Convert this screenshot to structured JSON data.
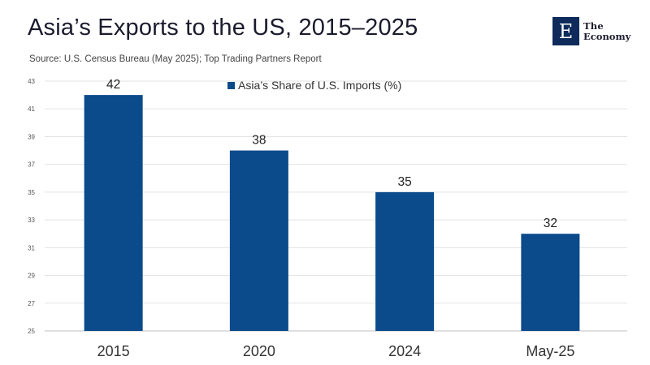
{
  "header": {
    "title": "Asia’s Exports to the US, 2015–2025",
    "subtitle": "Source: U.S. Census Bureau (May 2025); Top Trading Partners Report"
  },
  "logo": {
    "mark": "E",
    "line1": "The",
    "line2": "Economy",
    "color": "#0f2b5b"
  },
  "chart_data": {
    "type": "bar",
    "categories": [
      "2015",
      "2020",
      "2024",
      "May-25"
    ],
    "series": [
      {
        "name": "Asia’s Share of U.S. Imports (%)",
        "values": [
          42,
          38,
          35,
          32
        ],
        "color": "#0b4a8b"
      }
    ],
    "ylim": [
      25,
      43
    ],
    "yticks": [
      25,
      27,
      29,
      31,
      33,
      35,
      37,
      39,
      41,
      43
    ],
    "grid": true,
    "legend_position": "top-center",
    "data_labels": true
  }
}
